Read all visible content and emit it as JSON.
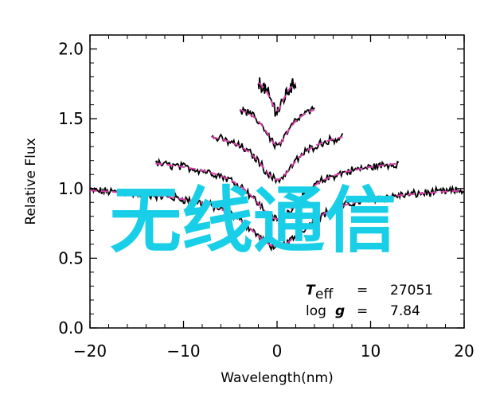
{
  "chart_data": {
    "type": "line",
    "title": "",
    "xlabel": "Wavelength(nm)",
    "ylabel": "Relative Flux",
    "xlim": [
      -20,
      20
    ],
    "ylim": [
      0.0,
      2.1
    ],
    "x_ticks": [
      -20,
      -10,
      0,
      10,
      20
    ],
    "x_tick_labels": [
      "−20",
      "−10",
      "0",
      "10",
      "20"
    ],
    "y_ticks": [
      0.0,
      0.5,
      1.0,
      1.5,
      2.0
    ],
    "y_tick_labels": [
      "0.0",
      "0.5",
      "1.0",
      "1.5",
      "2.0"
    ],
    "grid": false,
    "observed_color": "#000000",
    "model_color": "#d63fa8",
    "series": [
      {
        "offset": 1.0,
        "half_width": 20,
        "depth": 0.52,
        "core_width": 4.0
      },
      {
        "offset": 1.2,
        "half_width": 13,
        "depth": 0.52,
        "core_width": 3.2
      },
      {
        "offset": 1.4,
        "half_width": 7,
        "depth": 0.42,
        "core_width": 2.4
      },
      {
        "offset": 1.6,
        "half_width": 4,
        "depth": 0.36,
        "core_width": 1.6
      },
      {
        "offset": 1.8,
        "half_width": 2,
        "depth": 0.3,
        "core_width": 1.0
      }
    ],
    "annotations": {
      "teff_symbol": "T",
      "teff_sub": "eff",
      "teff_eq": "=",
      "teff_value": "27051",
      "logg_label": "log",
      "logg_symbol": "g",
      "logg_eq": "=",
      "logg_value": "7.84"
    }
  },
  "watermark": {
    "text": "无线通信",
    "color": "#19cfe8"
  }
}
